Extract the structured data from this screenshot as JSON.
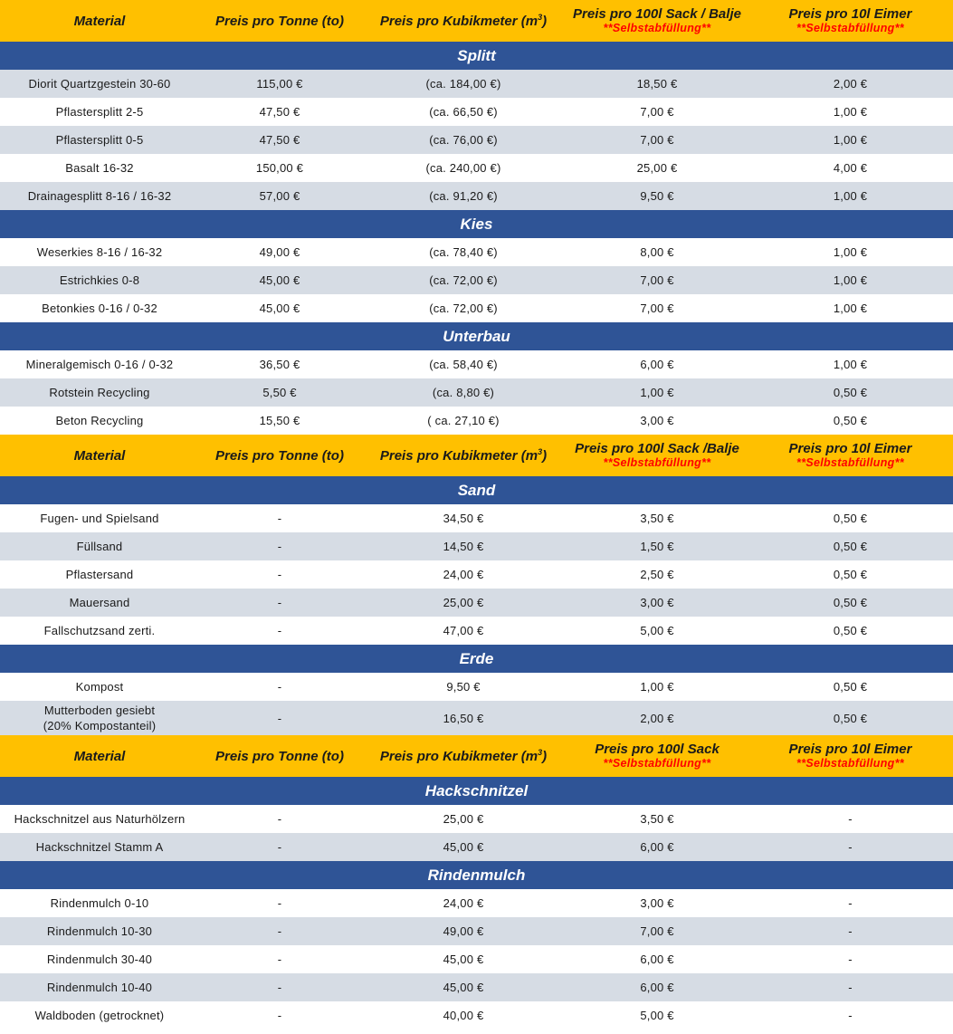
{
  "header_sets": [
    {
      "material": "Material",
      "preis_tonne": "Preis pro Tonne (to)",
      "preis_kubik": "Preis pro Kubikmeter (m",
      "kubik_sup": "3",
      "kubik_close": ")",
      "preis_sack": "Preis pro 100l Sack / Balje",
      "sack_note": "**Selbstabfüllung**",
      "preis_eimer": "Preis pro 10l Eimer",
      "eimer_note": "**Selbstabfüllung**"
    },
    {
      "material": "Material",
      "preis_tonne": "Preis pro Tonne (to)",
      "preis_kubik": "Preis pro Kubikmeter (m",
      "kubik_sup": "3",
      "kubik_close": ")",
      "preis_sack": "Preis pro 100l Sack /Balje",
      "sack_note": "**Selbstabfüllung**",
      "preis_eimer": "Preis pro 10l Eimer",
      "eimer_note": "**Selbstabfüllung**"
    },
    {
      "material": "Material",
      "preis_tonne": "Preis pro Tonne (to)",
      "preis_kubik": "Preis pro Kubikmeter (m",
      "kubik_sup": "3",
      "kubik_close": ")",
      "preis_sack": "Preis pro 100l Sack",
      "sack_note": "**Selbstabfüllung**",
      "preis_eimer": "Preis pro 10l Eimer",
      "eimer_note": "**Selbstabfüllung**"
    }
  ],
  "sections": [
    {
      "title": "Splitt",
      "rows": [
        {
          "material": "Diorit Quartzgestein 30-60",
          "tonne": "115,00 €",
          "kubik": "(ca. 184,00 €)",
          "sack": "18,50 €",
          "eimer": "2,00 €"
        },
        {
          "material": "Pflastersplitt 2-5",
          "tonne": "47,50 €",
          "kubik": "(ca. 66,50 €)",
          "sack": "7,00 €",
          "eimer": "1,00 €"
        },
        {
          "material": "Pflastersplitt 0-5",
          "tonne": "47,50 €",
          "kubik": "(ca. 76,00 €)",
          "sack": "7,00 €",
          "eimer": "1,00 €"
        },
        {
          "material": "Basalt 16-32",
          "tonne": "150,00 €",
          "kubik": "(ca. 240,00 €)",
          "sack": "25,00 €",
          "eimer": "4,00 €"
        },
        {
          "material": "Drainagesplitt 8-16 / 16-32",
          "tonne": "57,00 €",
          "kubik": "(ca. 91,20 €)",
          "sack": "9,50 €",
          "eimer": "1,00 €"
        }
      ]
    },
    {
      "title": "Kies",
      "rows": [
        {
          "material": "Weserkies 8-16 / 16-32",
          "tonne": "49,00 €",
          "kubik": "(ca. 78,40 €)",
          "sack": "8,00 €",
          "eimer": "1,00 €"
        },
        {
          "material": "Estrichkies 0-8",
          "tonne": "45,00 €",
          "kubik": "(ca. 72,00 €)",
          "sack": "7,00 €",
          "eimer": "1,00 €"
        },
        {
          "material": "Betonkies 0-16 / 0-32",
          "tonne": "45,00 €",
          "kubik": "(ca. 72,00 €)",
          "sack": "7,00 €",
          "eimer": "1,00 €"
        }
      ]
    },
    {
      "title": "Unterbau",
      "rows": [
        {
          "material": "Mineralgemisch 0-16 / 0-32",
          "tonne": "36,50 €",
          "kubik": "(ca. 58,40 €)",
          "sack": "6,00 €",
          "eimer": "1,00 €"
        },
        {
          "material": "Rotstein Recycling",
          "tonne": "5,50 €",
          "kubik": "(ca. 8,80 €)",
          "sack": "1,00 €",
          "eimer": "0,50 €"
        },
        {
          "material": "Beton Recycling",
          "tonne": "15,50 €",
          "kubik": "( ca. 27,10 €)",
          "sack": "3,00 €",
          "eimer": "0,50 €"
        }
      ]
    },
    {
      "title": "Sand",
      "rows": [
        {
          "material": "Fugen- und Spielsand",
          "tonne": "-",
          "kubik": "34,50 €",
          "sack": "3,50 €",
          "eimer": "0,50 €"
        },
        {
          "material": "Füllsand",
          "tonne": "-",
          "kubik": "14,50 €",
          "sack": "1,50 €",
          "eimer": "0,50 €"
        },
        {
          "material": "Pflastersand",
          "tonne": "-",
          "kubik": "24,00 €",
          "sack": "2,50 €",
          "eimer": "0,50 €"
        },
        {
          "material": "Mauersand",
          "tonne": "-",
          "kubik": "25,00 €",
          "sack": "3,00 €",
          "eimer": "0,50 €"
        },
        {
          "material": "Fallschutzsand zerti.",
          "tonne": "-",
          "kubik": "47,00 €",
          "sack": "5,00 €",
          "eimer": "0,50 €"
        }
      ]
    },
    {
      "title": "Erde",
      "rows": [
        {
          "material": "Kompost",
          "tonne": "-",
          "kubik": "9,50 €",
          "sack": "1,00 €",
          "eimer": "0,50 €"
        },
        {
          "material": "Mutterboden gesiebt",
          "material_line2": "(20% Kompostanteil)",
          "tonne": "-",
          "kubik": "16,50 €",
          "sack": "2,00 €",
          "eimer": "0,50 €"
        }
      ]
    },
    {
      "title": "Hackschnitzel",
      "rows": [
        {
          "material": "Hackschnitzel aus Naturhölzern",
          "tonne": "-",
          "kubik": "25,00 €",
          "sack": "3,50 €",
          "eimer": "-"
        },
        {
          "material": "Hackschnitzel Stamm A",
          "tonne": "-",
          "kubik": "45,00 €",
          "sack": "6,00 €",
          "eimer": "-"
        }
      ]
    },
    {
      "title": "Rindenmulch",
      "rows": [
        {
          "material": "Rindenmulch 0-10",
          "tonne": "-",
          "kubik": "24,00 €",
          "sack": "3,00 €",
          "eimer": "-"
        },
        {
          "material": "Rindenmulch 10-30",
          "tonne": "-",
          "kubik": "49,00 €",
          "sack": "7,00 €",
          "eimer": "-"
        },
        {
          "material": "Rindenmulch 30-40",
          "tonne": "-",
          "kubik": "45,00 €",
          "sack": "6,00 €",
          "eimer": "-"
        },
        {
          "material": "Rindenmulch 10-40",
          "tonne": "-",
          "kubik": "45,00 €",
          "sack": "6,00 €",
          "eimer": "-"
        },
        {
          "material": "Waldboden (getrocknet)",
          "tonne": "-",
          "kubik": "40,00 €",
          "sack": "5,00 €",
          "eimer": "-"
        }
      ]
    }
  ],
  "colors": {
    "header_bg": "#ffc000",
    "section_bg": "#2f5496",
    "row_shade": "#d6dce4",
    "note_red": "#ff0000"
  }
}
